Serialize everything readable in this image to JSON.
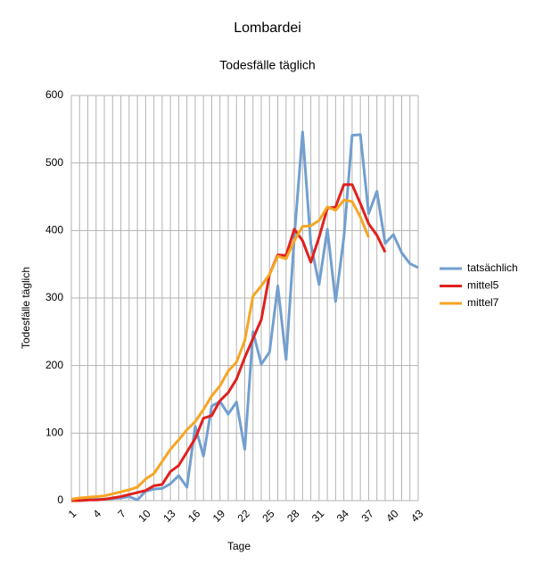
{
  "chart_data": {
    "type": "line",
    "title": "Lombardei",
    "subtitle": "Todesfälle täglich",
    "xlabel": "Tage",
    "ylabel": "Todesfälle täglich",
    "categories": [
      1,
      null,
      null,
      4,
      null,
      null,
      7,
      null,
      null,
      10,
      null,
      null,
      13,
      null,
      null,
      16,
      null,
      null,
      19,
      null,
      null,
      22,
      null,
      null,
      25,
      null,
      null,
      28,
      null,
      null,
      31,
      null,
      null,
      34,
      null,
      null,
      37,
      null,
      null,
      40,
      null,
      null,
      43
    ],
    "series": [
      {
        "name": "tatsächlich",
        "color": "#729fcf",
        "values": [
          0,
          0,
          1,
          2,
          2,
          3,
          4,
          6,
          1,
          14,
          17,
          18,
          25,
          37,
          20,
          110,
          66,
          140,
          147,
          128,
          146,
          76,
          250,
          202,
          220,
          318,
          209,
          390,
          546,
          380,
          320,
          402,
          295,
          390,
          541,
          542,
          425,
          458,
          381,
          394,
          367,
          351,
          345
        ]
      },
      {
        "name": "mittel5",
        "color": "#e0211e",
        "values": [
          0,
          0,
          1,
          1,
          2,
          4,
          6,
          9,
          12,
          15,
          22,
          24,
          43,
          52,
          72,
          92,
          122,
          126,
          148,
          160,
          180,
          212,
          240,
          268,
          335,
          364,
          363,
          402,
          385,
          353,
          390,
          433,
          435,
          468,
          468,
          440,
          410,
          393,
          368,
          null,
          null,
          null,
          null
        ]
      },
      {
        "name": "mittel7",
        "color": "#f5a623",
        "values": [
          2,
          4,
          5,
          6,
          7,
          10,
          13,
          16,
          20,
          32,
          40,
          58,
          76,
          90,
          105,
          117,
          135,
          155,
          170,
          192,
          205,
          237,
          303,
          318,
          335,
          362,
          358,
          385,
          406,
          407,
          415,
          435,
          430,
          445,
          443,
          420,
          390,
          null,
          null,
          null,
          null,
          null,
          null
        ]
      }
    ],
    "ylim": [
      0,
      600
    ],
    "yticks": [
      0,
      100,
      200,
      300,
      400,
      500,
      600
    ],
    "grid": true,
    "legend": "right"
  }
}
